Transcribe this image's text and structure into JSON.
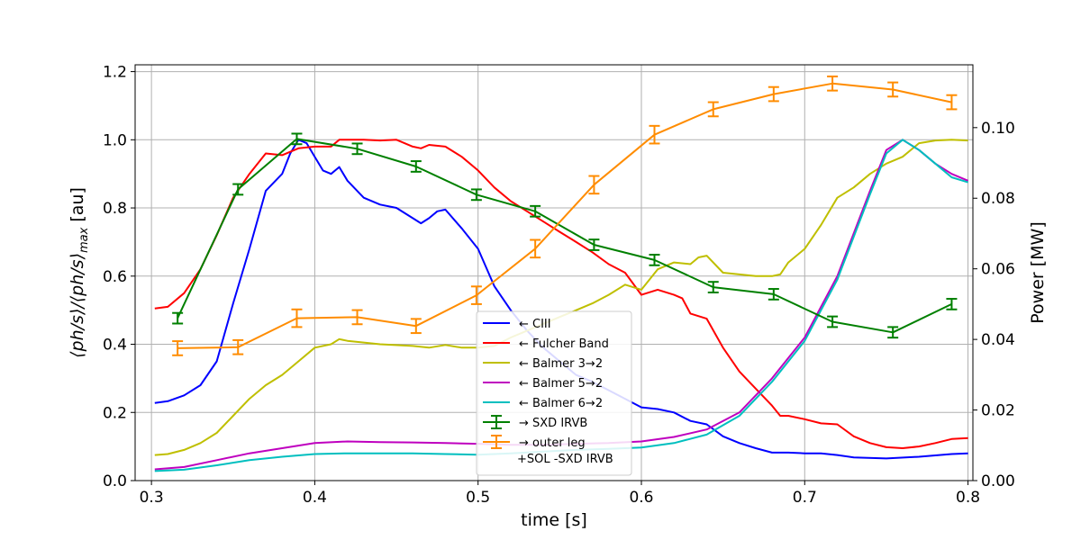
{
  "chart_data": {
    "type": "line",
    "xlabel": "time [s]",
    "ylabel_left": "⟨ph/s⟩/⟨ph/s⟩",
    "ylabel_left_subscript": "max",
    "ylabel_left_unit": " [au]",
    "ylabel_right": "Power [MW]",
    "xlim": [
      0.29,
      0.803
    ],
    "ylim_left": [
      0,
      1.22
    ],
    "ylim_right": [
      0,
      0.1178
    ],
    "x_ticks": [
      0.3,
      0.4,
      0.5,
      0.6,
      0.7,
      0.8
    ],
    "x_tick_labels": [
      "0.3",
      "0.4",
      "0.5",
      "0.6",
      "0.7",
      "0.8"
    ],
    "y_left_ticks": [
      0.0,
      0.2,
      0.4,
      0.6,
      0.8,
      1.0,
      1.2
    ],
    "y_left_tick_labels": [
      "0.0",
      "0.2",
      "0.4",
      "0.6",
      "0.8",
      "1.0",
      "1.2"
    ],
    "y_right_ticks": [
      0.0,
      0.02,
      0.04,
      0.06,
      0.08,
      0.1
    ],
    "y_right_tick_labels": [
      "0.00",
      "0.02",
      "0.04",
      "0.06",
      "0.08",
      "0.10"
    ],
    "grid": true,
    "legend_position": "center-bottom",
    "series": [
      {
        "name": "← CIII",
        "axis": "left",
        "color": "#0000ff",
        "points": [
          [
            0.302,
            0.228
          ],
          [
            0.31,
            0.233
          ],
          [
            0.32,
            0.25
          ],
          [
            0.33,
            0.28
          ],
          [
            0.34,
            0.35
          ],
          [
            0.35,
            0.52
          ],
          [
            0.36,
            0.68
          ],
          [
            0.37,
            0.85
          ],
          [
            0.38,
            0.9
          ],
          [
            0.385,
            0.96
          ],
          [
            0.39,
            1.0
          ],
          [
            0.395,
            0.99
          ],
          [
            0.4,
            0.95
          ],
          [
            0.405,
            0.91
          ],
          [
            0.41,
            0.9
          ],
          [
            0.415,
            0.92
          ],
          [
            0.42,
            0.88
          ],
          [
            0.43,
            0.83
          ],
          [
            0.44,
            0.81
          ],
          [
            0.45,
            0.8
          ],
          [
            0.46,
            0.77
          ],
          [
            0.465,
            0.755
          ],
          [
            0.47,
            0.77
          ],
          [
            0.475,
            0.79
          ],
          [
            0.48,
            0.795
          ],
          [
            0.49,
            0.74
          ],
          [
            0.5,
            0.68
          ],
          [
            0.51,
            0.57
          ],
          [
            0.52,
            0.5
          ],
          [
            0.53,
            0.44
          ],
          [
            0.54,
            0.39
          ],
          [
            0.55,
            0.35
          ],
          [
            0.56,
            0.31
          ],
          [
            0.57,
            0.29
          ],
          [
            0.58,
            0.265
          ],
          [
            0.59,
            0.24
          ],
          [
            0.6,
            0.215
          ],
          [
            0.61,
            0.21
          ],
          [
            0.62,
            0.2
          ],
          [
            0.63,
            0.175
          ],
          [
            0.64,
            0.165
          ],
          [
            0.65,
            0.13
          ],
          [
            0.66,
            0.11
          ],
          [
            0.67,
            0.095
          ],
          [
            0.68,
            0.082
          ],
          [
            0.69,
            0.082
          ],
          [
            0.7,
            0.08
          ],
          [
            0.71,
            0.08
          ],
          [
            0.72,
            0.075
          ],
          [
            0.73,
            0.068
          ],
          [
            0.75,
            0.065
          ],
          [
            0.77,
            0.07
          ],
          [
            0.79,
            0.078
          ],
          [
            0.8,
            0.08
          ]
        ]
      },
      {
        "name": "← Fulcher Band",
        "axis": "left",
        "color": "#ff0000",
        "points": [
          [
            0.302,
            0.505
          ],
          [
            0.31,
            0.51
          ],
          [
            0.32,
            0.55
          ],
          [
            0.33,
            0.62
          ],
          [
            0.34,
            0.72
          ],
          [
            0.35,
            0.83
          ],
          [
            0.36,
            0.9
          ],
          [
            0.37,
            0.96
          ],
          [
            0.38,
            0.955
          ],
          [
            0.39,
            0.975
          ],
          [
            0.4,
            0.98
          ],
          [
            0.41,
            0.98
          ],
          [
            0.415,
            1.0
          ],
          [
            0.43,
            1.0
          ],
          [
            0.44,
            0.998
          ],
          [
            0.45,
            1.0
          ],
          [
            0.46,
            0.98
          ],
          [
            0.465,
            0.975
          ],
          [
            0.47,
            0.985
          ],
          [
            0.48,
            0.98
          ],
          [
            0.49,
            0.95
          ],
          [
            0.5,
            0.91
          ],
          [
            0.51,
            0.86
          ],
          [
            0.52,
            0.82
          ],
          [
            0.53,
            0.79
          ],
          [
            0.54,
            0.76
          ],
          [
            0.55,
            0.73
          ],
          [
            0.56,
            0.7
          ],
          [
            0.57,
            0.67
          ],
          [
            0.58,
            0.635
          ],
          [
            0.59,
            0.61
          ],
          [
            0.6,
            0.545
          ],
          [
            0.61,
            0.56
          ],
          [
            0.62,
            0.545
          ],
          [
            0.625,
            0.535
          ],
          [
            0.63,
            0.49
          ],
          [
            0.64,
            0.475
          ],
          [
            0.65,
            0.39
          ],
          [
            0.66,
            0.32
          ],
          [
            0.67,
            0.27
          ],
          [
            0.68,
            0.22
          ],
          [
            0.685,
            0.19
          ],
          [
            0.69,
            0.19
          ],
          [
            0.7,
            0.18
          ],
          [
            0.71,
            0.168
          ],
          [
            0.72,
            0.165
          ],
          [
            0.73,
            0.13
          ],
          [
            0.74,
            0.11
          ],
          [
            0.75,
            0.098
          ],
          [
            0.76,
            0.095
          ],
          [
            0.77,
            0.1
          ],
          [
            0.78,
            0.11
          ],
          [
            0.79,
            0.122
          ],
          [
            0.8,
            0.125
          ]
        ]
      },
      {
        "name": "← Balmer 3→2",
        "axis": "left",
        "color": "#bfbf00",
        "points": [
          [
            0.302,
            0.075
          ],
          [
            0.31,
            0.078
          ],
          [
            0.32,
            0.09
          ],
          [
            0.33,
            0.11
          ],
          [
            0.34,
            0.14
          ],
          [
            0.35,
            0.19
          ],
          [
            0.36,
            0.24
          ],
          [
            0.37,
            0.28
          ],
          [
            0.38,
            0.31
          ],
          [
            0.39,
            0.35
          ],
          [
            0.4,
            0.39
          ],
          [
            0.41,
            0.4
          ],
          [
            0.415,
            0.415
          ],
          [
            0.42,
            0.41
          ],
          [
            0.43,
            0.405
          ],
          [
            0.44,
            0.4
          ],
          [
            0.46,
            0.395
          ],
          [
            0.47,
            0.39
          ],
          [
            0.48,
            0.398
          ],
          [
            0.49,
            0.39
          ],
          [
            0.5,
            0.39
          ],
          [
            0.51,
            0.395
          ],
          [
            0.52,
            0.42
          ],
          [
            0.53,
            0.44
          ],
          [
            0.54,
            0.46
          ],
          [
            0.55,
            0.48
          ],
          [
            0.56,
            0.5
          ],
          [
            0.57,
            0.52
          ],
          [
            0.58,
            0.545
          ],
          [
            0.59,
            0.575
          ],
          [
            0.6,
            0.56
          ],
          [
            0.61,
            0.62
          ],
          [
            0.62,
            0.64
          ],
          [
            0.63,
            0.635
          ],
          [
            0.635,
            0.655
          ],
          [
            0.64,
            0.66
          ],
          [
            0.65,
            0.61
          ],
          [
            0.66,
            0.605
          ],
          [
            0.67,
            0.6
          ],
          [
            0.68,
            0.6
          ],
          [
            0.685,
            0.605
          ],
          [
            0.69,
            0.64
          ],
          [
            0.7,
            0.68
          ],
          [
            0.71,
            0.75
          ],
          [
            0.72,
            0.83
          ],
          [
            0.73,
            0.86
          ],
          [
            0.74,
            0.9
          ],
          [
            0.75,
            0.93
          ],
          [
            0.76,
            0.95
          ],
          [
            0.77,
            0.99
          ],
          [
            0.78,
            0.998
          ],
          [
            0.79,
            1.0
          ],
          [
            0.8,
            0.998
          ]
        ]
      },
      {
        "name": "← Balmer 5→2",
        "axis": "left",
        "color": "#bf00bf",
        "points": [
          [
            0.302,
            0.033
          ],
          [
            0.32,
            0.04
          ],
          [
            0.34,
            0.06
          ],
          [
            0.36,
            0.08
          ],
          [
            0.38,
            0.095
          ],
          [
            0.4,
            0.11
          ],
          [
            0.42,
            0.115
          ],
          [
            0.44,
            0.113
          ],
          [
            0.46,
            0.112
          ],
          [
            0.48,
            0.11
          ],
          [
            0.5,
            0.108
          ],
          [
            0.52,
            0.105
          ],
          [
            0.54,
            0.105
          ],
          [
            0.56,
            0.108
          ],
          [
            0.58,
            0.11
          ],
          [
            0.6,
            0.115
          ],
          [
            0.62,
            0.128
          ],
          [
            0.64,
            0.15
          ],
          [
            0.66,
            0.2
          ],
          [
            0.68,
            0.3
          ],
          [
            0.7,
            0.42
          ],
          [
            0.72,
            0.6
          ],
          [
            0.74,
            0.85
          ],
          [
            0.75,
            0.97
          ],
          [
            0.76,
            1.0
          ],
          [
            0.77,
            0.97
          ],
          [
            0.78,
            0.93
          ],
          [
            0.79,
            0.9
          ],
          [
            0.8,
            0.88
          ]
        ]
      },
      {
        "name": "← Balmer 6→2",
        "axis": "left",
        "color": "#00bfbf",
        "points": [
          [
            0.302,
            0.028
          ],
          [
            0.32,
            0.032
          ],
          [
            0.34,
            0.045
          ],
          [
            0.36,
            0.06
          ],
          [
            0.38,
            0.07
          ],
          [
            0.4,
            0.078
          ],
          [
            0.42,
            0.08
          ],
          [
            0.44,
            0.08
          ],
          [
            0.46,
            0.08
          ],
          [
            0.48,
            0.078
          ],
          [
            0.5,
            0.076
          ],
          [
            0.52,
            0.08
          ],
          [
            0.54,
            0.085
          ],
          [
            0.56,
            0.09
          ],
          [
            0.58,
            0.093
          ],
          [
            0.6,
            0.097
          ],
          [
            0.62,
            0.11
          ],
          [
            0.64,
            0.135
          ],
          [
            0.66,
            0.19
          ],
          [
            0.68,
            0.29
          ],
          [
            0.7,
            0.41
          ],
          [
            0.72,
            0.59
          ],
          [
            0.74,
            0.84
          ],
          [
            0.75,
            0.96
          ],
          [
            0.76,
            1.0
          ],
          [
            0.77,
            0.97
          ],
          [
            0.78,
            0.93
          ],
          [
            0.79,
            0.89
          ],
          [
            0.8,
            0.875
          ]
        ]
      },
      {
        "name": "→ SXD IRVB",
        "axis": "right",
        "color": "#008000",
        "errorbars": true,
        "points": [
          [
            0.316,
            0.046,
            0.0015
          ],
          [
            0.353,
            0.0825,
            0.0015
          ],
          [
            0.389,
            0.0968,
            0.0015
          ],
          [
            0.426,
            0.094,
            0.0015
          ],
          [
            0.462,
            0.089,
            0.0015
          ],
          [
            0.499,
            0.081,
            0.0015
          ],
          [
            0.535,
            0.0763,
            0.0015
          ],
          [
            0.571,
            0.0668,
            0.0015
          ],
          [
            0.608,
            0.0625,
            0.0015
          ],
          [
            0.644,
            0.0548,
            0.0015
          ],
          [
            0.681,
            0.0528,
            0.0015
          ],
          [
            0.717,
            0.045,
            0.0015
          ],
          [
            0.754,
            0.042,
            0.0015
          ],
          [
            0.79,
            0.05,
            0.0015
          ]
        ]
      },
      {
        "name": "→ outer leg\n+SOL -SXD IRVB",
        "axis": "right",
        "color": "#ff8c00",
        "errorbars": true,
        "points": [
          [
            0.316,
            0.0375,
            0.002
          ],
          [
            0.353,
            0.0378,
            0.002
          ],
          [
            0.389,
            0.046,
            0.0025
          ],
          [
            0.426,
            0.0463,
            0.002
          ],
          [
            0.462,
            0.0438,
            0.002
          ],
          [
            0.499,
            0.0525,
            0.0025
          ],
          [
            0.535,
            0.0657,
            0.0025
          ],
          [
            0.571,
            0.0838,
            0.0025
          ],
          [
            0.608,
            0.098,
            0.0025
          ],
          [
            0.644,
            0.1052,
            0.002
          ],
          [
            0.681,
            0.1095,
            0.002
          ],
          [
            0.717,
            0.1125,
            0.002
          ],
          [
            0.754,
            0.1108,
            0.002
          ],
          [
            0.79,
            0.1072,
            0.002
          ]
        ]
      }
    ]
  }
}
